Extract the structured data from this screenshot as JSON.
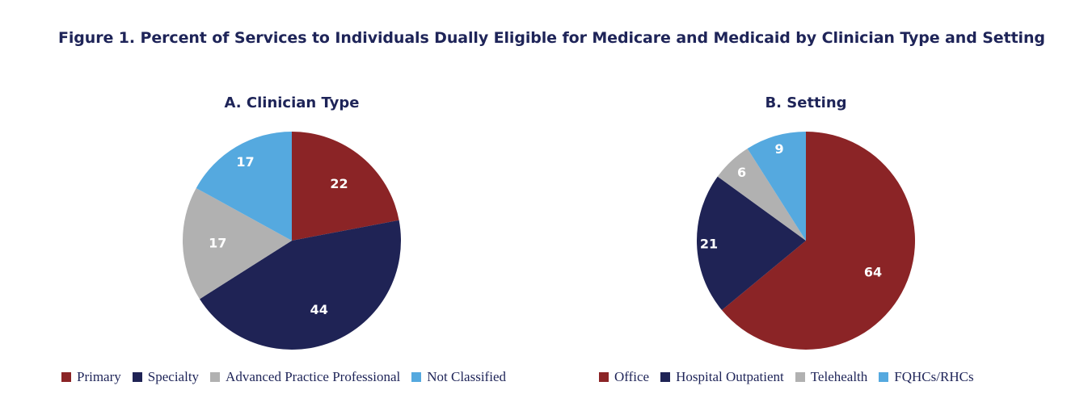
{
  "figure_title": "Figure 1. Percent of Services to Individuals Dually Eligible for Medicare and Medicaid by Clinician Type and Setting",
  "colors": {
    "red": "#8b2426",
    "navy": "#1f2355",
    "gray": "#b1b1b1",
    "blue": "#55a9df"
  },
  "chart_data": [
    {
      "type": "pie",
      "title": "A. Clinician Type",
      "categories": [
        "Primary",
        "Specialty",
        "Advanced Practice Professional",
        "Not Classified"
      ],
      "values": [
        22,
        44,
        17,
        17
      ],
      "colors": [
        "#8b2426",
        "#1f2355",
        "#b1b1b1",
        "#55a9df"
      ],
      "unit": "percent",
      "legend": "bottom"
    },
    {
      "type": "pie",
      "title": "B. Setting",
      "categories": [
        "Office",
        "Hospital Outpatient",
        "Telehealth",
        "FQHCs/RHCs"
      ],
      "values": [
        64,
        21,
        6,
        9
      ],
      "colors": [
        "#8b2426",
        "#1f2355",
        "#b1b1b1",
        "#55a9df"
      ],
      "unit": "percent",
      "legend": "bottom"
    }
  ]
}
